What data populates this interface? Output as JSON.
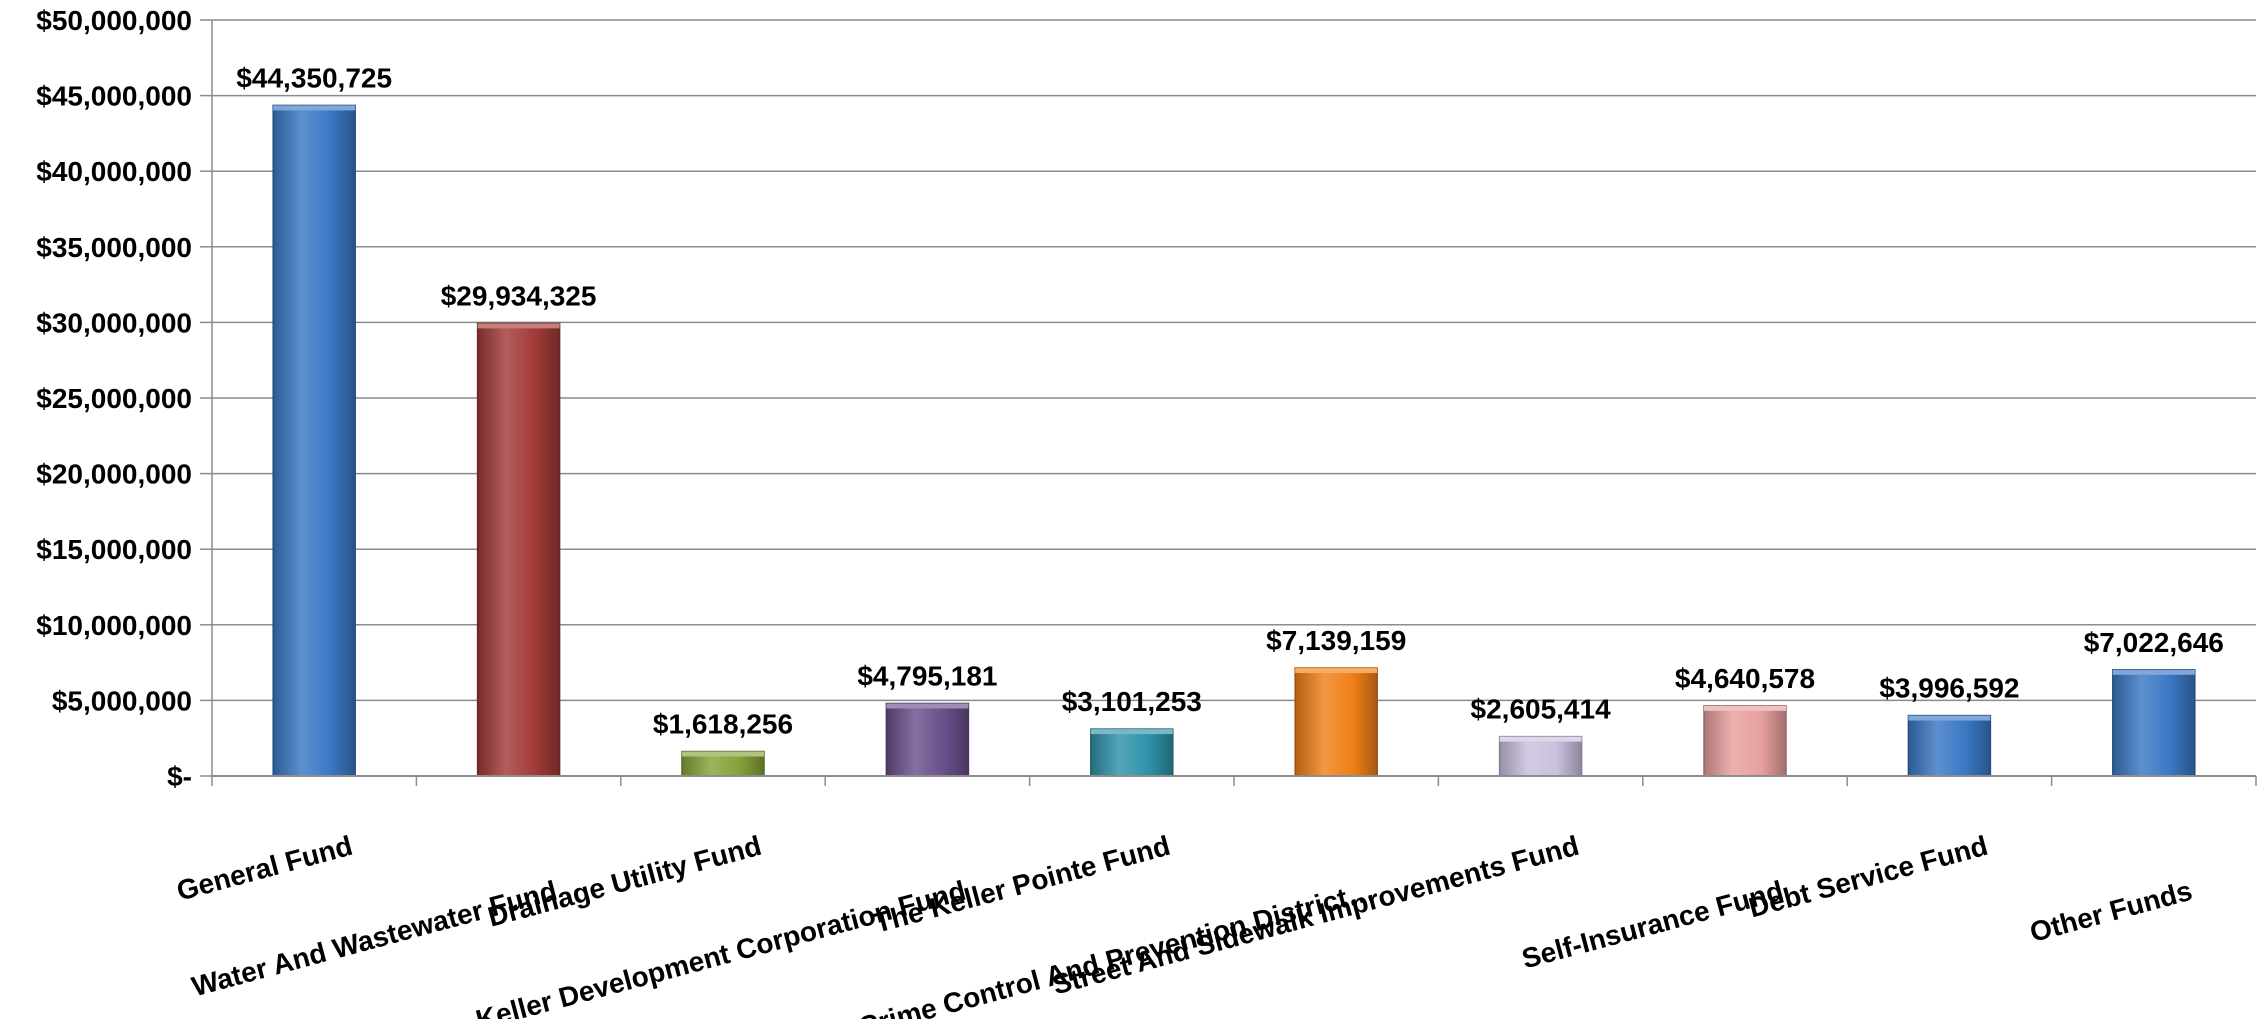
{
  "chart_data": {
    "type": "bar",
    "title": "",
    "xlabel": "",
    "ylabel": "",
    "ylim": [
      0,
      50000000
    ],
    "grid": true,
    "legend": "none",
    "y_ticks": [
      {
        "value": 0,
        "label": "$-"
      },
      {
        "value": 5000000,
        "label": "$5,000,000"
      },
      {
        "value": 10000000,
        "label": "$10,000,000"
      },
      {
        "value": 15000000,
        "label": "$15,000,000"
      },
      {
        "value": 20000000,
        "label": "$20,000,000"
      },
      {
        "value": 25000000,
        "label": "$25,000,000"
      },
      {
        "value": 30000000,
        "label": "$30,000,000"
      },
      {
        "value": 35000000,
        "label": "$35,000,000"
      },
      {
        "value": 40000000,
        "label": "$40,000,000"
      },
      {
        "value": 45000000,
        "label": "$45,000,000"
      },
      {
        "value": 50000000,
        "label": "$50,000,000"
      }
    ],
    "categories": [
      "General Fund",
      "Water And Wastewater Fund",
      "Drainage Utility Fund",
      "Keller Development Corporation Fund",
      "The Keller Pointe Fund",
      "Keller Crime Control And Prevention District…",
      "Street And Sidewalk Improvements Fund",
      "Self-Insurance Fund",
      "Debt Service Fund",
      "Other Funds"
    ],
    "values": [
      44350725,
      29934325,
      1618256,
      4795181,
      3101253,
      7139159,
      2605414,
      4640578,
      3996592,
      7022646
    ],
    "data_labels": [
      "$44,350,725",
      "$29,934,325",
      "$1,618,256",
      "$4,795,181",
      "$3,101,253",
      "$7,139,159",
      "$2,605,414",
      "$4,640,578",
      "$3,996,592",
      "$7,022,646"
    ],
    "colors": [
      "#3a78c4",
      "#a33a38",
      "#86a23a",
      "#6a4f8c",
      "#2f92aa",
      "#f08018",
      "#c9c0dd",
      "#e6a09e",
      "#3a78c4",
      "#3a78c4"
    ]
  }
}
